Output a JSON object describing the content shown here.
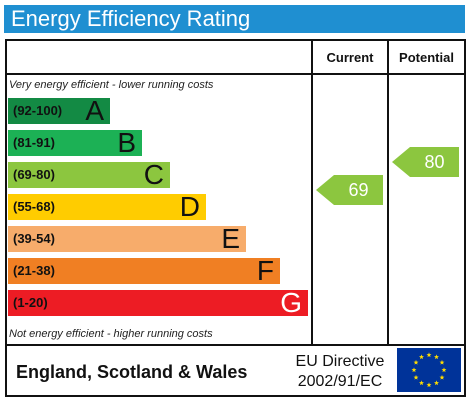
{
  "title": "Energy Efficiency Rating",
  "headers": {
    "current": "Current",
    "potential": "Potential"
  },
  "top_note": "Very energy efficient - lower running costs",
  "bottom_note": "Not energy efficient - higher running costs",
  "footer": {
    "region": "England, Scotland & Wales",
    "directive_line1": "EU Directive",
    "directive_line2": "2002/91/EC"
  },
  "chart_data": {
    "type": "bar",
    "categories": [
      "A",
      "B",
      "C",
      "D",
      "E",
      "F",
      "G"
    ],
    "ranges": [
      "(92-100)",
      "(81-91)",
      "(69-80)",
      "(55-68)",
      "(39-54)",
      "(21-38)",
      "(1-20)"
    ],
    "colors": [
      "#138a44",
      "#1cb155",
      "#8cc63f",
      "#ffcc00",
      "#f7ac6b",
      "#f07f23",
      "#ed1c24"
    ],
    "current": {
      "value": 69,
      "color": "#8cc63f"
    },
    "potential": {
      "value": 80,
      "color": "#8cc63f"
    }
  }
}
